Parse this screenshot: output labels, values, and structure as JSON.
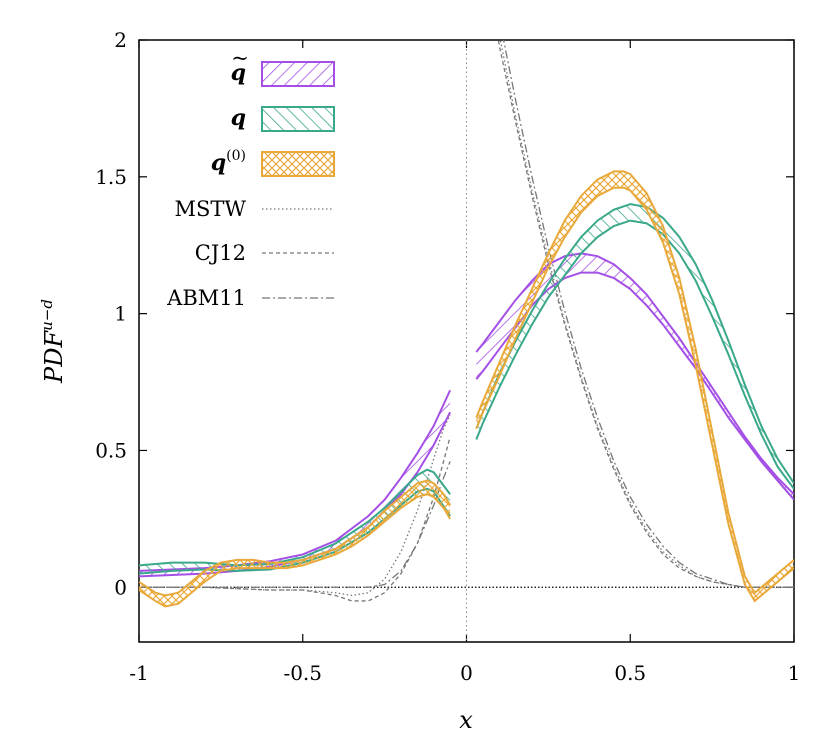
{
  "chart_data": {
    "type": "line",
    "title": "",
    "xlabel": "x",
    "ylabel_parts": {
      "main": "PDF",
      "sup": "u−d"
    },
    "xlim": [
      -1,
      1
    ],
    "ylim": [
      -0.2,
      2
    ],
    "xticks": [
      {
        "value": -1,
        "label": "-1"
      },
      {
        "value": -0.5,
        "label": "-0.5"
      },
      {
        "value": 0,
        "label": "0"
      },
      {
        "value": 0.5,
        "label": "0.5"
      },
      {
        "value": 1,
        "label": "1"
      }
    ],
    "yticks": [
      {
        "value": 0,
        "label": "0"
      },
      {
        "value": 0.5,
        "label": "0.5"
      },
      {
        "value": 1,
        "label": "1"
      },
      {
        "value": 1.5,
        "label": "1.5"
      },
      {
        "value": 2,
        "label": "2"
      }
    ],
    "legend": {
      "placement": "top-left",
      "entries": [
        {
          "key": "qtilde",
          "base": "q",
          "accent": "~",
          "sup": "",
          "style": "band"
        },
        {
          "key": "q",
          "base": "q",
          "accent": "",
          "sup": "",
          "style": "band"
        },
        {
          "key": "q0",
          "base": "q",
          "accent": "",
          "sup": "(0)",
          "style": "band"
        },
        {
          "key": "mstw",
          "text": "MSTW",
          "style": "dotted"
        },
        {
          "key": "cj12",
          "text": "CJ12",
          "style": "dashed"
        },
        {
          "key": "abm11",
          "text": "ABM11",
          "style": "dashdot"
        }
      ]
    },
    "colors": {
      "qtilde": "#a450e6",
      "q": "#3aa88a",
      "q0": "#e9a93a",
      "reference": "#777777",
      "axis": "#000000"
    },
    "band_series": [
      {
        "key": "qtilde",
        "name": "q̃",
        "negative_branch": {
          "x": [
            -1,
            -0.9,
            -0.8,
            -0.7,
            -0.6,
            -0.5,
            -0.4,
            -0.3,
            -0.25,
            -0.2,
            -0.15,
            -0.1,
            -0.05
          ],
          "upper": [
            0.06,
            0.065,
            0.07,
            0.08,
            0.095,
            0.12,
            0.17,
            0.26,
            0.32,
            0.4,
            0.49,
            0.59,
            0.72
          ],
          "lower": [
            0.04,
            0.045,
            0.05,
            0.06,
            0.075,
            0.1,
            0.14,
            0.22,
            0.28,
            0.34,
            0.42,
            0.52,
            0.64
          ]
        },
        "positive_branch": {
          "x": [
            0.03,
            0.05,
            0.1,
            0.15,
            0.2,
            0.25,
            0.3,
            0.35,
            0.4,
            0.45,
            0.5,
            0.55,
            0.6,
            0.65,
            0.7,
            0.75,
            0.8,
            0.85,
            0.9,
            0.95,
            1.0
          ],
          "upper": [
            0.86,
            0.89,
            0.97,
            1.05,
            1.12,
            1.18,
            1.21,
            1.22,
            1.21,
            1.18,
            1.13,
            1.07,
            0.99,
            0.91,
            0.82,
            0.73,
            0.64,
            0.55,
            0.47,
            0.4,
            0.34
          ],
          "lower": [
            0.76,
            0.79,
            0.87,
            0.95,
            1.03,
            1.09,
            1.13,
            1.15,
            1.15,
            1.13,
            1.09,
            1.03,
            0.96,
            0.88,
            0.8,
            0.71,
            0.62,
            0.54,
            0.46,
            0.39,
            0.32
          ]
        }
      },
      {
        "key": "q",
        "name": "q",
        "negative_branch": {
          "x": [
            -1,
            -0.9,
            -0.8,
            -0.7,
            -0.6,
            -0.5,
            -0.4,
            -0.3,
            -0.25,
            -0.2,
            -0.15,
            -0.12,
            -0.1,
            -0.05
          ],
          "upper": [
            0.08,
            0.09,
            0.09,
            0.08,
            0.085,
            0.11,
            0.16,
            0.24,
            0.29,
            0.35,
            0.41,
            0.43,
            0.42,
            0.34
          ],
          "lower": [
            0.05,
            0.06,
            0.065,
            0.06,
            0.065,
            0.09,
            0.13,
            0.2,
            0.25,
            0.3,
            0.35,
            0.36,
            0.35,
            0.26
          ]
        },
        "positive_branch": {
          "x": [
            0.03,
            0.05,
            0.1,
            0.15,
            0.2,
            0.25,
            0.3,
            0.35,
            0.4,
            0.45,
            0.5,
            0.55,
            0.6,
            0.65,
            0.7,
            0.75,
            0.8,
            0.85,
            0.9,
            0.95,
            1.0
          ],
          "upper": [
            0.58,
            0.64,
            0.78,
            0.9,
            1.01,
            1.11,
            1.2,
            1.28,
            1.34,
            1.38,
            1.4,
            1.39,
            1.35,
            1.28,
            1.18,
            1.05,
            0.9,
            0.74,
            0.59,
            0.47,
            0.38
          ],
          "lower": [
            0.54,
            0.6,
            0.73,
            0.85,
            0.96,
            1.06,
            1.14,
            1.22,
            1.28,
            1.32,
            1.34,
            1.33,
            1.29,
            1.22,
            1.12,
            0.99,
            0.85,
            0.7,
            0.56,
            0.44,
            0.36
          ]
        }
      },
      {
        "key": "q0",
        "name": "q(0)",
        "negative_branch": {
          "x": [
            -1,
            -0.95,
            -0.92,
            -0.88,
            -0.84,
            -0.8,
            -0.75,
            -0.7,
            -0.65,
            -0.6,
            -0.55,
            -0.5,
            -0.45,
            -0.4,
            -0.35,
            -0.3,
            -0.25,
            -0.2,
            -0.15,
            -0.12,
            -0.1,
            -0.07,
            -0.05
          ],
          "upper": [
            0.02,
            -0.02,
            -0.03,
            -0.02,
            0.02,
            0.06,
            0.09,
            0.1,
            0.1,
            0.09,
            0.09,
            0.1,
            0.12,
            0.14,
            0.18,
            0.22,
            0.28,
            0.33,
            0.38,
            0.39,
            0.38,
            0.34,
            0.3
          ],
          "lower": [
            -0.01,
            -0.05,
            -0.07,
            -0.06,
            -0.02,
            0.02,
            0.06,
            0.07,
            0.07,
            0.07,
            0.07,
            0.08,
            0.1,
            0.12,
            0.15,
            0.19,
            0.24,
            0.29,
            0.33,
            0.34,
            0.33,
            0.29,
            0.25
          ]
        },
        "positive_branch": {
          "x": [
            0.03,
            0.05,
            0.1,
            0.15,
            0.2,
            0.25,
            0.3,
            0.35,
            0.4,
            0.45,
            0.48,
            0.5,
            0.55,
            0.6,
            0.65,
            0.7,
            0.75,
            0.8,
            0.85,
            0.88,
            0.9,
            0.95,
            1.0
          ],
          "upper": [
            0.62,
            0.68,
            0.82,
            0.96,
            1.09,
            1.22,
            1.34,
            1.43,
            1.49,
            1.52,
            1.52,
            1.51,
            1.44,
            1.32,
            1.13,
            0.87,
            0.57,
            0.27,
            0.04,
            -0.02,
            0.0,
            0.05,
            0.1
          ],
          "lower": [
            0.58,
            0.64,
            0.77,
            0.91,
            1.04,
            1.17,
            1.28,
            1.37,
            1.43,
            1.46,
            1.46,
            1.45,
            1.38,
            1.26,
            1.07,
            0.81,
            0.52,
            0.23,
            0.01,
            -0.05,
            -0.03,
            0.02,
            0.07
          ]
        }
      }
    ],
    "reference_series": [
      {
        "key": "mstw",
        "name": "MSTW",
        "style": "dotted",
        "x": [
          -1,
          -0.8,
          -0.6,
          -0.5,
          -0.4,
          -0.35,
          -0.3,
          -0.25,
          -0.2,
          -0.15,
          -0.1,
          -0.07,
          -0.05,
          0.08,
          0.1,
          0.15,
          0.2,
          0.25,
          0.3,
          0.35,
          0.4,
          0.45,
          0.5,
          0.55,
          0.6,
          0.65,
          0.7,
          0.75,
          0.8,
          0.85,
          0.9,
          1.0
        ],
        "y": [
          0,
          0,
          -0.01,
          -0.01,
          -0.02,
          -0.03,
          -0.02,
          0.03,
          0.13,
          0.28,
          0.47,
          0.58,
          0.63,
          2.2,
          2.02,
          1.72,
          1.45,
          1.2,
          0.97,
          0.77,
          0.59,
          0.44,
          0.31,
          0.21,
          0.13,
          0.08,
          0.04,
          0.02,
          0.01,
          0.0,
          0.0,
          0.0
        ]
      },
      {
        "key": "cj12",
        "name": "CJ12",
        "style": "dashed",
        "x": [
          -1,
          -0.8,
          -0.6,
          -0.5,
          -0.4,
          -0.35,
          -0.3,
          -0.25,
          -0.2,
          -0.15,
          -0.1,
          -0.07,
          -0.05,
          0.08,
          0.1,
          0.15,
          0.2,
          0.25,
          0.3,
          0.35,
          0.4,
          0.45,
          0.5,
          0.55,
          0.6,
          0.65,
          0.7,
          0.75,
          0.8,
          0.85,
          0.9,
          1.0
        ],
        "y": [
          0,
          0,
          -0.01,
          -0.01,
          -0.03,
          -0.05,
          -0.05,
          -0.02,
          0.05,
          0.16,
          0.33,
          0.46,
          0.55,
          2.15,
          1.98,
          1.7,
          1.43,
          1.18,
          0.96,
          0.76,
          0.58,
          0.43,
          0.3,
          0.2,
          0.12,
          0.07,
          0.04,
          0.02,
          0.01,
          0.0,
          0.0,
          0.0
        ]
      },
      {
        "key": "abm11",
        "name": "ABM11",
        "style": "dashdot",
        "x": [
          -1,
          -0.8,
          -0.6,
          -0.5,
          -0.4,
          -0.35,
          -0.3,
          -0.25,
          -0.2,
          -0.15,
          -0.1,
          -0.07,
          -0.05,
          0.08,
          0.1,
          0.15,
          0.2,
          0.25,
          0.3,
          0.35,
          0.4,
          0.45,
          0.5,
          0.55,
          0.6,
          0.65,
          0.7,
          0.75,
          0.8,
          0.85,
          0.9,
          1.0
        ],
        "y": [
          0,
          0,
          0,
          0,
          0,
          0,
          0.0,
          0.01,
          0.06,
          0.16,
          0.3,
          0.4,
          0.46,
          2.25,
          2.08,
          1.78,
          1.5,
          1.24,
          1.01,
          0.8,
          0.62,
          0.46,
          0.33,
          0.23,
          0.15,
          0.09,
          0.05,
          0.03,
          0.01,
          0.0,
          0.0,
          0.0
        ]
      }
    ]
  }
}
